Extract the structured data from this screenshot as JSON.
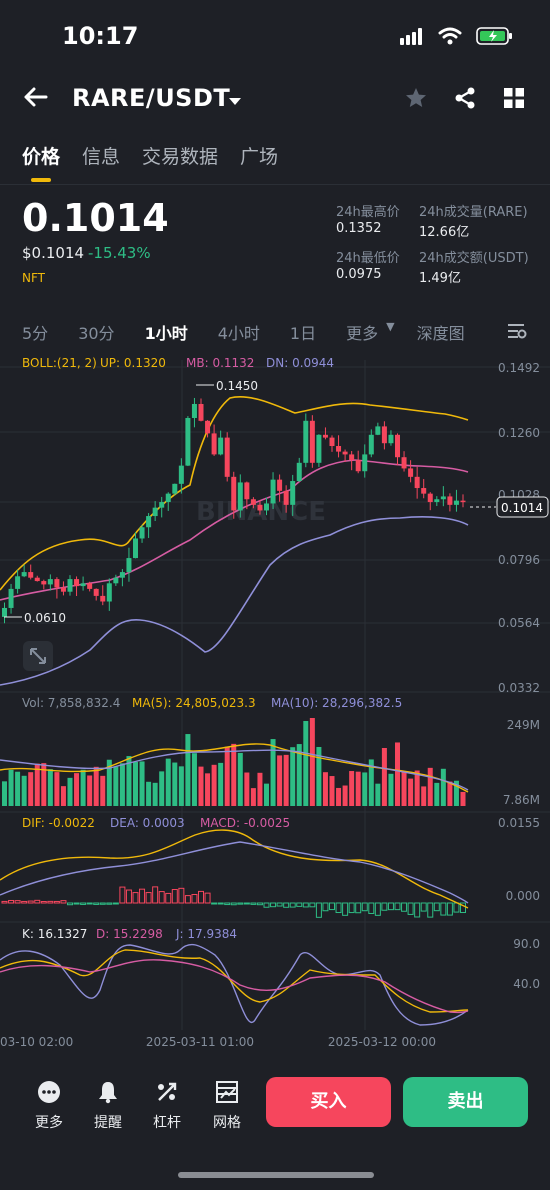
{
  "status": {
    "time": "10:17"
  },
  "header": {
    "pair": "RARE/USDT"
  },
  "tabs": [
    "价格",
    "信息",
    "交易数据",
    "广场"
  ],
  "price": {
    "last": "0.1014",
    "usd": "$0.1014",
    "change": "-15.43%",
    "tag": "NFT"
  },
  "stats": {
    "high_label": "24h最高价",
    "high": "0.1352",
    "vol_label": "24h成交量(RARE)",
    "vol": "12.66亿",
    "low_label": "24h最低价",
    "low": "0.0975",
    "amt_label": "24h成交额(USDT)",
    "amt": "1.49亿"
  },
  "intervals": {
    "i5": "5分",
    "i30": "30分",
    "i1h": "1小时",
    "i4h": "4小时",
    "i1d": "1日",
    "more": "更多",
    "depth": "深度图"
  },
  "boll": {
    "label": "BOLL:(21, 2)",
    "up": "UP: 0.1320",
    "mb": "MB: 0.1132",
    "dn": "DN: 0.0944"
  },
  "price_axis": [
    "0.1492",
    "0.1260",
    "0.1028",
    "0.0796",
    "0.0564",
    "0.0332"
  ],
  "price_marks": {
    "high": "0.1450",
    "low": "0.0610",
    "current": "0.1014"
  },
  "volume": {
    "vol": "Vol: 7,858,832.4",
    "ma5": "MA(5): 24,805,023.3",
    "ma10": "MA(10): 28,296,382.5",
    "max": "249M",
    "min": "7.86M"
  },
  "macd": {
    "dif": "DIF: -0.0022",
    "dea": "DEA: 0.0003",
    "macd": "MACD: -0.0025",
    "top": "0.0155",
    "zero": "0.000"
  },
  "kdj": {
    "k": "K: 16.1327",
    "d": "D: 15.2298",
    "j": "J: 17.9384",
    "top": "90.0",
    "mid": "40.0"
  },
  "time_axis": [
    "03-10 02:00",
    "2025-03-11 01:00",
    "2025-03-12 00:00"
  ],
  "watermark": "BINANCE",
  "bottom": {
    "more": "更多",
    "alert": "提醒",
    "leverage": "杠杆",
    "grid": "网格",
    "buy": "买入",
    "sell": "卖出"
  },
  "colors": {
    "up": "#2ebd85",
    "down": "#f6465d",
    "accent": "#f0b90b",
    "bg": "#1e2026"
  },
  "chart_data": {
    "type": "candlestick",
    "ylim": [
      0.0332,
      0.1492
    ],
    "closes": [
      0.0632,
      0.07,
      0.0745,
      0.076,
      0.074,
      0.0728,
      0.0716,
      0.0735,
      0.0705,
      0.069,
      0.0735,
      0.071,
      0.072,
      0.07,
      0.0675,
      0.0655,
      0.072,
      0.074,
      0.076,
      0.081,
      0.088,
      0.092,
      0.096,
      0.099,
      0.101,
      0.104,
      0.1075,
      0.114,
      0.131,
      0.136,
      0.13,
      0.1255,
      0.118,
      0.124,
      0.11,
      0.098,
      0.108,
      0.102,
      0.1,
      0.098,
      0.1005,
      0.109,
      0.105,
      0.1,
      0.1085,
      0.115,
      0.13,
      0.115,
      0.125,
      0.124,
      0.121,
      0.119,
      0.118,
      0.116,
      0.112,
      0.118,
      0.125,
      0.128,
      0.122,
      0.125,
      0.117,
      0.113,
      0.11,
      0.106,
      0.104,
      0.101,
      0.102,
      0.103,
      0.1,
      0.1015,
      0.1014
    ]
  }
}
